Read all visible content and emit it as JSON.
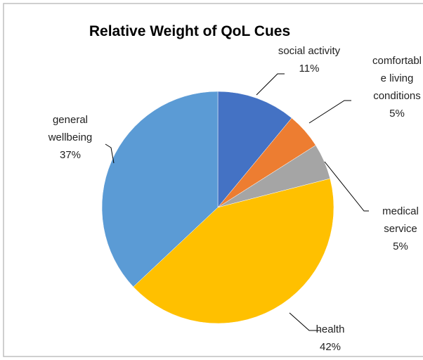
{
  "chart_data": {
    "type": "pie",
    "title": "Relative Weight of QoL Cues",
    "categories": [
      "social activity",
      "comfortable living conditions",
      "medical service",
      "health",
      "general wellbeing"
    ],
    "values": [
      11,
      5,
      5,
      42,
      37
    ],
    "value_labels": [
      "11%",
      "5%",
      "5%",
      "42%",
      "37%"
    ],
    "colors": [
      "#4472c4",
      "#ed7d31",
      "#a5a5a5",
      "#ffc000",
      "#5b9bd5"
    ]
  }
}
